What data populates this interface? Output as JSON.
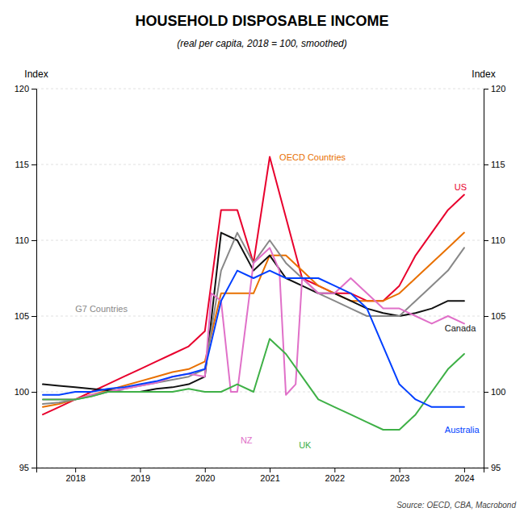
{
  "chart_data": {
    "type": "line",
    "title": "HOUSEHOLD DISPOSABLE INCOME",
    "subtitle": "(real per capita, 2018 = 100, smoothed)",
    "ylabel": "Index",
    "y2label": "Index",
    "source": "Source: OECD, CBA, Macrobond",
    "xlim": [
      2017.4,
      2024.3
    ],
    "xticks": [
      2018,
      2019,
      2020,
      2021,
      2022,
      2023,
      2024
    ],
    "ylim": [
      95,
      120
    ],
    "yticks": [
      95,
      100,
      105,
      110,
      115,
      120
    ],
    "y2lim": [
      95,
      120
    ],
    "y2ticks": [
      95,
      100,
      105,
      110,
      115,
      120
    ],
    "grid": true,
    "series": [
      {
        "name": "US",
        "color": "#e8002d",
        "x": [
          2017.5,
          2017.75,
          2018.0,
          2018.25,
          2018.5,
          2018.75,
          2019.0,
          2019.25,
          2019.5,
          2019.75,
          2020.0,
          2020.25,
          2020.5,
          2020.75,
          2021.0,
          2021.25,
          2021.5,
          2021.75,
          2022.0,
          2022.25,
          2022.5,
          2022.75,
          2023.0,
          2023.25,
          2023.5,
          2023.75,
          2024.0
        ],
        "values": [
          98.5,
          99.0,
          99.5,
          100.0,
          100.5,
          101.0,
          101.5,
          102.0,
          102.5,
          103.0,
          104.0,
          112.0,
          112.0,
          108.5,
          115.5,
          111.5,
          107.5,
          107.0,
          106.5,
          106.5,
          106.0,
          106.0,
          107.0,
          109.0,
          110.5,
          112.0,
          113.0
        ]
      },
      {
        "name": "OECD Countries",
        "color": "#e87000",
        "x": [
          2017.5,
          2017.75,
          2018.0,
          2018.25,
          2018.5,
          2018.75,
          2019.0,
          2019.25,
          2019.5,
          2019.75,
          2020.0,
          2020.25,
          2020.5,
          2020.75,
          2021.0,
          2021.25,
          2021.5,
          2021.75,
          2022.0,
          2022.25,
          2022.5,
          2022.75,
          2023.0,
          2023.25,
          2023.5,
          2023.75,
          2024.0
        ],
        "values": [
          99.0,
          99.2,
          99.5,
          99.8,
          100.1,
          100.4,
          100.7,
          101.0,
          101.3,
          101.5,
          102.0,
          106.5,
          106.5,
          106.5,
          109.0,
          109.0,
          108.0,
          107.0,
          106.5,
          106.0,
          106.0,
          106.0,
          106.5,
          107.5,
          108.5,
          109.5,
          110.5
        ]
      },
      {
        "name": "Canada",
        "color": "#111111",
        "x": [
          2017.5,
          2017.75,
          2018.0,
          2018.25,
          2018.5,
          2018.75,
          2019.0,
          2019.25,
          2019.5,
          2019.75,
          2020.0,
          2020.25,
          2020.5,
          2020.75,
          2021.0,
          2021.25,
          2021.5,
          2021.75,
          2022.0,
          2022.25,
          2022.5,
          2022.75,
          2023.0,
          2023.25,
          2023.5,
          2023.75,
          2024.0
        ],
        "values": [
          100.5,
          100.4,
          100.3,
          100.2,
          100.1,
          100.0,
          100.0,
          100.2,
          100.3,
          100.5,
          101.0,
          110.5,
          110.0,
          108.0,
          109.0,
          107.5,
          107.0,
          106.5,
          106.5,
          106.0,
          105.5,
          105.2,
          105.0,
          105.2,
          105.5,
          106.0,
          106.0
        ]
      },
      {
        "name": "G7 Countries",
        "color": "#888888",
        "x": [
          2017.5,
          2017.75,
          2018.0,
          2018.25,
          2018.5,
          2018.75,
          2019.0,
          2019.25,
          2019.5,
          2019.75,
          2020.0,
          2020.25,
          2020.5,
          2020.75,
          2021.0,
          2021.25,
          2021.5,
          2021.75,
          2022.0,
          2022.25,
          2022.5,
          2022.75,
          2023.0,
          2023.25,
          2023.5,
          2023.75,
          2024.0
        ],
        "values": [
          99.2,
          99.3,
          99.5,
          99.7,
          100.0,
          100.2,
          100.4,
          100.6,
          100.8,
          101.0,
          101.5,
          108.0,
          110.5,
          108.5,
          110.0,
          108.5,
          107.5,
          106.5,
          106.0,
          105.5,
          105.0,
          105.0,
          105.0,
          106.0,
          107.0,
          108.0,
          109.5
        ]
      },
      {
        "name": "NZ",
        "color": "#e070c8",
        "x": [
          2017.5,
          2017.75,
          2018.0,
          2018.25,
          2018.5,
          2018.75,
          2019.0,
          2019.25,
          2019.5,
          2019.75,
          2020.0,
          2020.1,
          2020.25,
          2020.4,
          2020.5,
          2020.75,
          2021.0,
          2021.15,
          2021.25,
          2021.4,
          2021.5,
          2021.75,
          2022.0,
          2022.25,
          2022.5,
          2022.75,
          2023.0,
          2023.25,
          2023.5,
          2023.75,
          2024.0
        ],
        "values": [
          99.5,
          99.5,
          99.5,
          99.8,
          100.0,
          100.2,
          100.4,
          100.6,
          101.0,
          101.2,
          101.0,
          106.5,
          106.0,
          100.0,
          100.0,
          108.5,
          109.5,
          108.0,
          99.8,
          100.5,
          107.5,
          106.5,
          106.5,
          107.5,
          106.5,
          105.5,
          105.5,
          105.0,
          104.5,
          105.0,
          104.5
        ]
      },
      {
        "name": "UK",
        "color": "#3eb046",
        "x": [
          2017.5,
          2017.75,
          2018.0,
          2018.25,
          2018.5,
          2018.75,
          2019.0,
          2019.25,
          2019.5,
          2019.75,
          2020.0,
          2020.25,
          2020.5,
          2020.75,
          2021.0,
          2021.25,
          2021.5,
          2021.75,
          2022.0,
          2022.25,
          2022.5,
          2022.75,
          2023.0,
          2023.25,
          2023.5,
          2023.75,
          2024.0
        ],
        "values": [
          99.5,
          99.5,
          99.5,
          99.7,
          100.0,
          100.0,
          100.0,
          100.0,
          100.0,
          100.2,
          100.0,
          100.0,
          100.5,
          100.0,
          103.5,
          102.5,
          101.0,
          99.5,
          99.0,
          98.5,
          98.0,
          97.5,
          97.5,
          98.5,
          100.0,
          101.5,
          102.5
        ]
      },
      {
        "name": "Australia",
        "color": "#003fff",
        "x": [
          2017.5,
          2017.75,
          2018.0,
          2018.25,
          2018.5,
          2018.75,
          2019.0,
          2019.25,
          2019.5,
          2019.75,
          2020.0,
          2020.25,
          2020.5,
          2020.75,
          2021.0,
          2021.25,
          2021.5,
          2021.75,
          2022.0,
          2022.25,
          2022.5,
          2022.75,
          2023.0,
          2023.25,
          2023.5,
          2023.75,
          2024.0
        ],
        "values": [
          99.8,
          99.8,
          100.0,
          100.0,
          100.2,
          100.3,
          100.5,
          100.7,
          101.0,
          101.2,
          101.5,
          106.0,
          108.0,
          107.5,
          108.0,
          107.5,
          107.5,
          107.5,
          107.0,
          106.5,
          105.5,
          103.0,
          100.5,
          99.5,
          99.0,
          99.0,
          99.0
        ]
      }
    ],
    "annotations": [
      {
        "text": "US",
        "x": 2023.85,
        "y": 113.5,
        "color": "#e8002d"
      },
      {
        "text": "OECD Countries",
        "x": 2021.15,
        "y": 115.5,
        "color": "#e87000"
      },
      {
        "text": "Canada",
        "x": 2023.7,
        "y": 104.2,
        "color": "#111111"
      },
      {
        "text": "G7 Countries",
        "x": 2018.0,
        "y": 105.5,
        "color": "#888888"
      },
      {
        "text": "NZ",
        "x": 2020.55,
        "y": 96.8,
        "color": "#e070c8"
      },
      {
        "text": "UK",
        "x": 2021.45,
        "y": 96.5,
        "color": "#3eb046"
      },
      {
        "text": "Australia",
        "x": 2023.7,
        "y": 97.5,
        "color": "#003fff"
      }
    ]
  }
}
